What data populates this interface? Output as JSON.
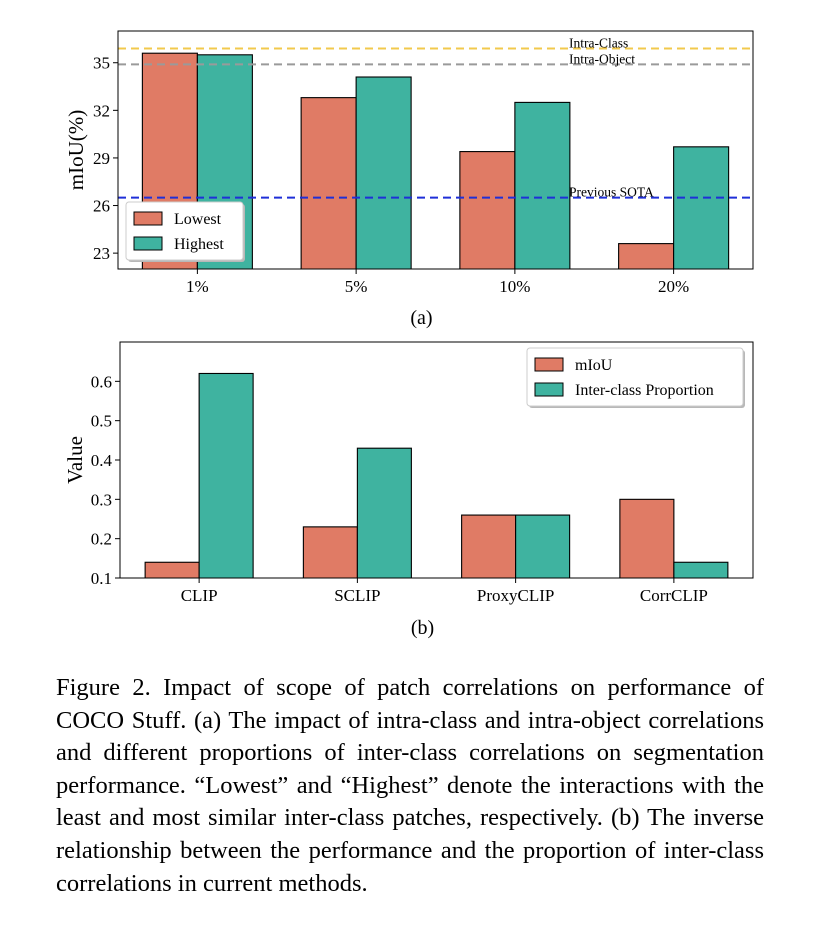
{
  "chart_data": [
    {
      "type": "bar",
      "panel_label": "(a)",
      "categories": [
        "1%",
        "5%",
        "10%",
        "20%"
      ],
      "series": [
        {
          "name": "Lowest",
          "values": [
            35.6,
            32.8,
            29.4,
            23.6
          ],
          "color": "#E07B65"
        },
        {
          "name": "Highest",
          "values": [
            35.5,
            34.1,
            32.5,
            29.7
          ],
          "color": "#3FB3A0"
        }
      ],
      "reference_lines": [
        {
          "label": "Intra-Class",
          "value": 35.9,
          "color": "#F2C94C"
        },
        {
          "label": "Intra-Object",
          "value": 34.9,
          "color": "#9A9A9A"
        },
        {
          "label": "Previous SOTA",
          "value": 26.5,
          "color": "#1F2FD8"
        }
      ],
      "ylabel": "mIoU(%)",
      "xlabel": "",
      "title": "",
      "ylim": [
        22.0,
        37.0
      ],
      "yticks": [
        "23",
        "26",
        "29",
        "32",
        "35"
      ],
      "legend_position": "lower-left",
      "grid": false
    },
    {
      "type": "bar",
      "panel_label": "(b)",
      "categories": [
        "CLIP",
        "SCLIP",
        "ProxyCLIP",
        "CorrCLIP"
      ],
      "series": [
        {
          "name": "mIoU",
          "values": [
            0.14,
            0.23,
            0.26,
            0.3
          ],
          "color": "#E07B65"
        },
        {
          "name": "Inter-class Proportion",
          "values": [
            0.62,
            0.43,
            0.26,
            0.14
          ],
          "color": "#3FB3A0"
        }
      ],
      "ylabel": "Value",
      "xlabel": "",
      "title": "",
      "ylim": [
        0.1,
        0.7
      ],
      "yticks": [
        "0.1",
        "0.2",
        "0.3",
        "0.4",
        "0.5",
        "0.6"
      ],
      "legend_position": "upper-right",
      "grid": false
    }
  ],
  "caption": "Figure 2.  Impact of scope of patch correlations on performance of COCO Stuff. (a) The impact of intra-class and intra-object correlations and different proportions of inter-class correlations on segmentation performance.  “Lowest” and “Highest” denote the interactions with the least and most similar inter-class patches, respectively.  (b) The inverse relationship between the performance and the proportion of inter-class correlations in current methods."
}
